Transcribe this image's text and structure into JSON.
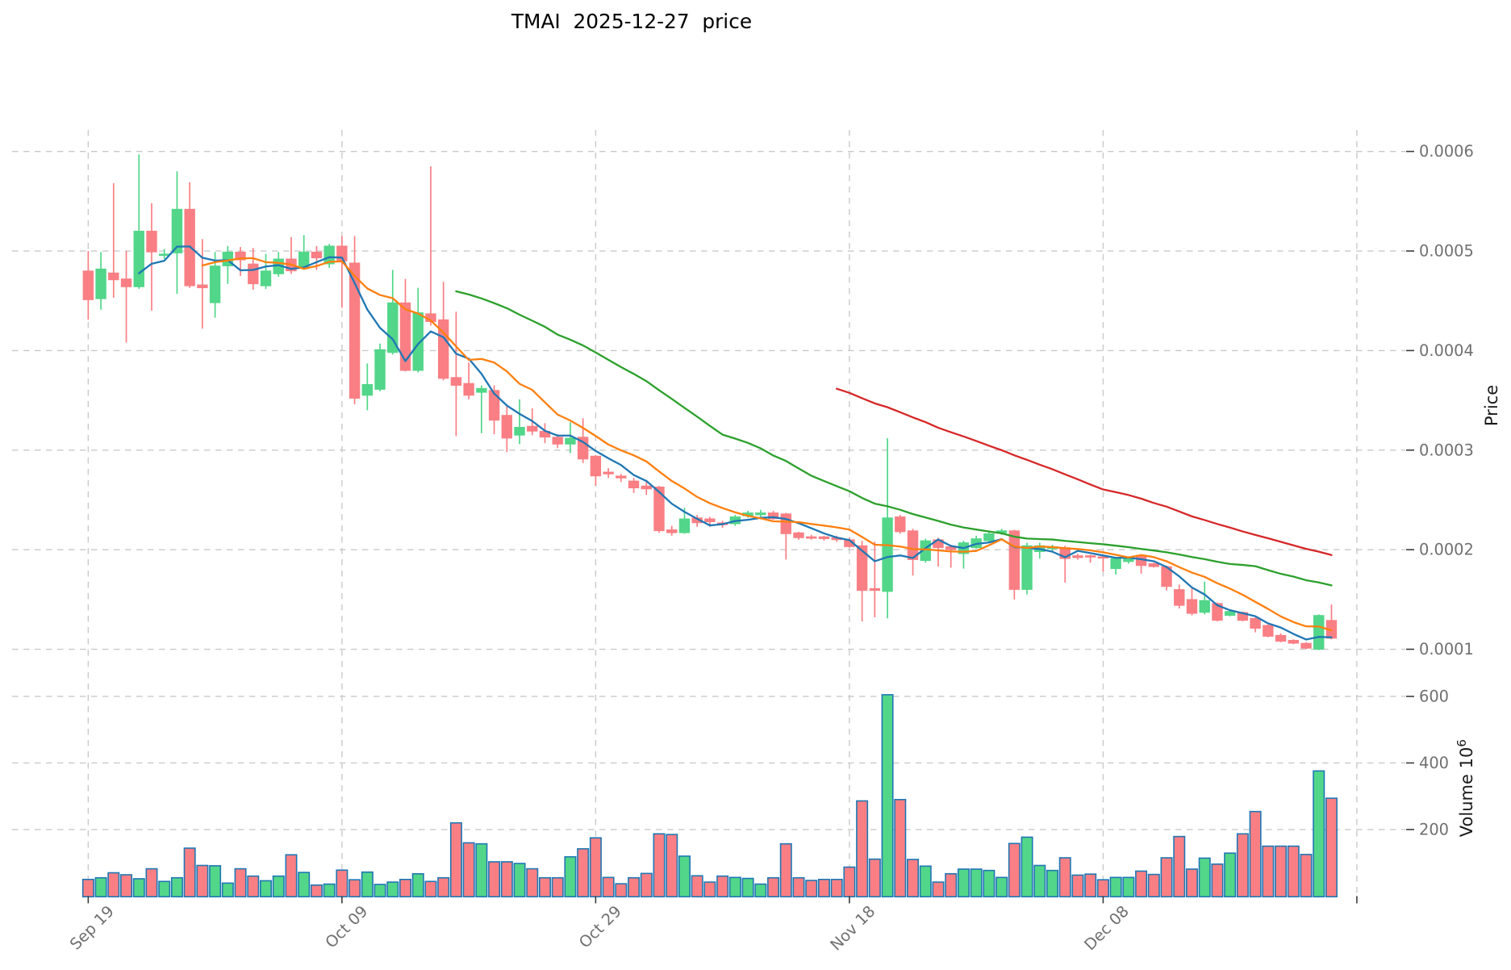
{
  "chart_data": {
    "type": "candlestick",
    "title": "TMAI  2025-12-27  price",
    "ylabel": "Price",
    "volume_label": "Volume  10",
    "volume_label_exponent": "6",
    "x_tick_labels": [
      "Sep 19",
      "Oct 09",
      "Oct 29",
      "Nov 18",
      "Dec 08"
    ],
    "x_tick_indices": [
      0,
      20,
      40,
      60,
      80,
      100
    ],
    "price_ticks": [
      0.0001,
      0.0002,
      0.0003,
      0.0004,
      0.0005,
      0.0006
    ],
    "price_tick_labels": [
      "0.0001",
      "0.0002",
      "0.0003",
      "0.0004",
      "0.0005",
      "0.0006"
    ],
    "volume_ticks": [
      200,
      400,
      600
    ],
    "volume_tick_labels": [
      "200",
      "400",
      "600"
    ],
    "xlim": [
      -6.0,
      103.82
    ],
    "ylim_price": [
      8.26e-05,
      0.0006216
    ],
    "ylim_volume": [
      0,
      689.6
    ],
    "grid": true,
    "moving_averages": [
      {
        "period": 5,
        "color": "#1f77b4"
      },
      {
        "period": 10,
        "color": "#ff7f0e"
      },
      {
        "period": 30,
        "color": "#2ca02c"
      },
      {
        "period": 60,
        "color": "#d62728"
      }
    ],
    "colors": {
      "up": "#52d689",
      "down": "#f97f84",
      "volume_edge": "#1f77b4",
      "grid": "#c9c9c9",
      "tick_label": "#707070",
      "tick_mark": "#3b3b3b",
      "axis_label": "#1a1a1a",
      "title": "#000000",
      "background": "#ffffff"
    },
    "dates": [
      "2025-09-19",
      "2025-09-20",
      "2025-09-21",
      "2025-09-22",
      "2025-09-23",
      "2025-09-24",
      "2025-09-25",
      "2025-09-26",
      "2025-09-27",
      "2025-09-28",
      "2025-09-29",
      "2025-09-30",
      "2025-10-01",
      "2025-10-02",
      "2025-10-03",
      "2025-10-04",
      "2025-10-05",
      "2025-10-06",
      "2025-10-07",
      "2025-10-08",
      "2025-10-09",
      "2025-10-10",
      "2025-10-11",
      "2025-10-12",
      "2025-10-13",
      "2025-10-14",
      "2025-10-15",
      "2025-10-16",
      "2025-10-17",
      "2025-10-18",
      "2025-10-19",
      "2025-10-20",
      "2025-10-21",
      "2025-10-22",
      "2025-10-23",
      "2025-10-24",
      "2025-10-25",
      "2025-10-26",
      "2025-10-27",
      "2025-10-28",
      "2025-10-29",
      "2025-10-30",
      "2025-10-31",
      "2025-11-01",
      "2025-11-02",
      "2025-11-03",
      "2025-11-04",
      "2025-11-05",
      "2025-11-06",
      "2025-11-07",
      "2025-11-08",
      "2025-11-09",
      "2025-11-10",
      "2025-11-11",
      "2025-11-12",
      "2025-11-13",
      "2025-11-14",
      "2025-11-15",
      "2025-11-16",
      "2025-11-17",
      "2025-11-18",
      "2025-11-19",
      "2025-11-20",
      "2025-11-21",
      "2025-11-22",
      "2025-11-23",
      "2025-11-24",
      "2025-11-25",
      "2025-11-26",
      "2025-11-27",
      "2025-11-28",
      "2025-11-29",
      "2025-11-30",
      "2025-12-01",
      "2025-12-02",
      "2025-12-03",
      "2025-12-04",
      "2025-12-05",
      "2025-12-06",
      "2025-12-07",
      "2025-12-08",
      "2025-12-09",
      "2025-12-10",
      "2025-12-11",
      "2025-12-12",
      "2025-12-13",
      "2025-12-14",
      "2025-12-15",
      "2025-12-16",
      "2025-12-17",
      "2025-12-18",
      "2025-12-19",
      "2025-12-20",
      "2025-12-21",
      "2025-12-22",
      "2025-12-23",
      "2025-12-24",
      "2025-12-25",
      "2025-12-26"
    ],
    "open": [
      0.00048,
      0.000452,
      0.000478,
      0.000472,
      0.000464,
      0.00052,
      0.000496,
      0.000498,
      0.000542,
      0.000466,
      0.000448,
      0.000485,
      0.000499,
      0.000487,
      0.000465,
      0.000477,
      0.000492,
      0.000484,
      0.000499,
      0.000487,
      0.000505,
      0.000488,
      0.000355,
      0.000361,
      0.000398,
      0.000448,
      0.00038,
      0.000437,
      0.000431,
      0.000373,
      0.000367,
      0.000358,
      0.00036,
      0.000335,
      0.000315,
      0.000324,
      0.000319,
      0.000313,
      0.000306,
      0.000313,
      0.000294,
      0.000278,
      0.000274,
      0.000269,
      0.000264,
      0.000263,
      0.00022,
      0.000217,
      0.000232,
      0.000231,
      0.000227,
      0.000226,
      0.000234,
      0.000235,
      0.000237,
      0.000236,
      0.000217,
      0.000213,
      0.000213,
      0.000212,
      0.00021,
      0.000204,
      0.000161,
      0.000158,
      0.000233,
      0.000219,
      0.000189,
      0.00021,
      0.000203,
      0.000196,
      0.000202,
      0.000209,
      0.000217,
      0.000219,
      0.00016,
      0.000198,
      0.000201,
      0.000202,
      0.000194,
      0.000194,
      0.000193,
      0.000181,
      0.000188,
      0.000193,
      0.000186,
      0.000183,
      0.00016,
      0.00015,
      0.000137,
      0.000146,
      0.000134,
      0.000137,
      0.000131,
      0.000124,
      0.000114,
      0.000109,
      0.000106,
      0.0001,
      0.000129
    ],
    "high": [
      0.0005,
      0.000499,
      0.000568,
      0.0005,
      0.000597,
      0.000548,
      0.000502,
      0.00058,
      0.000569,
      0.000512,
      0.000499,
      0.000505,
      0.000504,
      0.000503,
      0.000497,
      0.000499,
      0.000514,
      0.000516,
      0.000505,
      0.000507,
      0.000515,
      0.000515,
      0.000387,
      0.000407,
      0.000481,
      0.000472,
      0.000463,
      0.000585,
      0.000469,
      0.000439,
      0.000388,
      0.000365,
      0.000365,
      0.000345,
      0.000351,
      0.000342,
      0.000327,
      0.000316,
      0.000328,
      0.000332,
      0.000295,
      0.000282,
      0.000276,
      0.000272,
      0.00027,
      0.000264,
      0.000224,
      0.000242,
      0.000235,
      0.000233,
      0.000229,
      0.000235,
      0.000239,
      0.00024,
      0.000239,
      0.000237,
      0.000218,
      0.000215,
      0.000214,
      0.000214,
      0.000212,
      0.000209,
      0.000208,
      0.000312,
      0.000235,
      0.000221,
      0.000211,
      0.000212,
      0.000205,
      0.000209,
      0.000214,
      0.000219,
      0.000221,
      0.00022,
      0.000207,
      0.000207,
      0.000205,
      0.000204,
      0.000196,
      0.000195,
      0.000195,
      0.000192,
      0.000193,
      0.000195,
      0.000187,
      0.000184,
      0.000165,
      0.000161,
      0.000168,
      0.000147,
      0.000139,
      0.000138,
      0.000132,
      0.000125,
      0.000116,
      0.00011,
      0.000107,
      0.000135,
      0.000145
    ],
    "low": [
      0.000431,
      0.000441,
      0.000453,
      0.000408,
      0.000462,
      0.00044,
      0.000492,
      0.000457,
      0.000463,
      0.000422,
      0.000433,
      0.000467,
      0.000475,
      0.000461,
      0.000462,
      0.000474,
      0.000477,
      0.000481,
      0.000481,
      0.000483,
      0.000443,
      0.000346,
      0.00034,
      0.000359,
      0.000396,
      0.000379,
      0.000378,
      0.000425,
      0.00037,
      0.000314,
      0.000351,
      0.000317,
      0.000316,
      0.000298,
      0.000306,
      0.000315,
      0.000307,
      0.000302,
      0.000297,
      0.000287,
      0.000264,
      0.000272,
      0.000268,
      0.000257,
      0.000255,
      0.000217,
      0.000214,
      0.000216,
      0.000223,
      0.000223,
      0.000222,
      0.000224,
      0.000232,
      0.000233,
      0.00023,
      0.00019,
      0.00021,
      0.00021,
      0.000209,
      0.000208,
      0.000202,
      0.000128,
      0.000132,
      0.000131,
      0.000216,
      0.000174,
      0.000187,
      0.000183,
      0.000182,
      0.000181,
      0.000201,
      0.000207,
      0.000215,
      0.00015,
      0.000155,
      0.000191,
      0.000198,
      0.000167,
      0.00019,
      0.000187,
      0.000178,
      0.000175,
      0.000186,
      0.000176,
      0.000182,
      0.000159,
      0.000141,
      0.000134,
      0.000135,
      0.000128,
      0.000133,
      0.000128,
      0.000117,
      0.000112,
      0.000107,
      0.000105,
      0.0001,
      9.9e-05,
      0.00011
    ],
    "close": [
      0.000451,
      0.000482,
      0.000471,
      0.000464,
      0.00052,
      0.000499,
      0.000497,
      0.000542,
      0.000465,
      0.000463,
      0.000485,
      0.000499,
      0.000491,
      0.000467,
      0.00048,
      0.000492,
      0.00048,
      0.000499,
      0.000493,
      0.000505,
      0.00049,
      0.000352,
      0.000366,
      0.000401,
      0.000448,
      0.00038,
      0.000438,
      0.000429,
      0.000372,
      0.000365,
      0.000355,
      0.000362,
      0.00033,
      0.000312,
      0.000323,
      0.000319,
      0.000313,
      0.000306,
      0.000312,
      0.000291,
      0.000274,
      0.000276,
      0.000272,
      0.000262,
      0.000261,
      0.000219,
      0.000217,
      0.000231,
      0.000227,
      0.000228,
      0.000225,
      0.000233,
      0.000237,
      0.000237,
      0.000231,
      0.000216,
      0.000212,
      0.000212,
      0.000211,
      0.00021,
      0.000203,
      0.000159,
      0.000159,
      0.000232,
      0.000218,
      0.00019,
      0.000209,
      0.000202,
      0.0002,
      0.000207,
      0.000211,
      0.000216,
      0.000219,
      0.00016,
      0.000204,
      0.000204,
      0.000203,
      0.000191,
      0.000192,
      0.000193,
      0.000192,
      0.000191,
      0.000192,
      0.000184,
      0.000183,
      0.000163,
      0.000144,
      0.000136,
      0.000149,
      0.000129,
      0.000138,
      0.000129,
      0.000121,
      0.000113,
      0.000108,
      0.000106,
      0.000101,
      0.000134,
      0.000111
    ],
    "volume_millions": [
      50,
      55,
      70,
      64,
      52,
      82,
      44,
      55,
      144,
      92,
      91,
      39,
      82,
      60,
      46,
      60,
      124,
      71,
      33,
      36,
      78,
      49,
      72,
      35,
      42,
      50,
      67,
      44,
      55,
      220,
      160,
      157,
      103,
      103,
      98,
      82,
      55,
      55,
      118,
      142,
      175,
      56,
      37,
      55,
      68,
      187,
      185,
      120,
      61,
      42,
      60,
      56,
      53,
      36,
      55,
      157,
      55,
      47,
      50,
      50,
      87,
      286,
      111,
      605,
      290,
      110,
      90,
      42,
      67,
      81,
      81,
      77,
      56,
      158,
      177,
      92,
      77,
      115,
      63,
      66,
      49,
      56,
      56,
      75,
      65,
      115,
      179,
      81,
      114,
      96,
      129,
      187,
      254,
      150,
      150,
      150,
      125,
      376,
      294
    ]
  }
}
